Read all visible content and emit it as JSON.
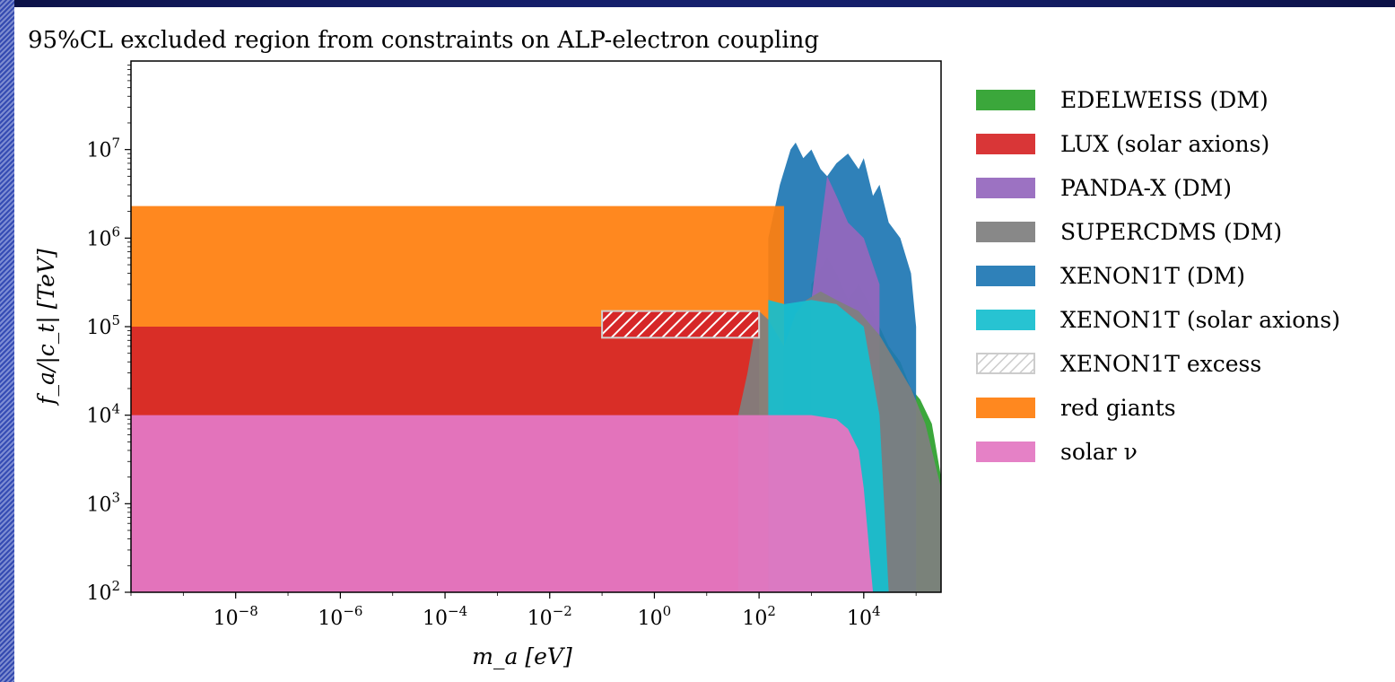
{
  "chart_data": {
    "type": "area",
    "title": "95%CL excluded region from constraints on ALP-electron coupling",
    "xlabel": "m_a [eV]",
    "ylabel": "f_a/|c_t| [TeV]",
    "xscale": "log",
    "yscale": "log",
    "xlim": [
      1e-10,
      300000.0
    ],
    "ylim": [
      100,
      100000000.0
    ],
    "grid": false,
    "legend_position": "outside-right",
    "x_ticks": [
      {
        "base": "10",
        "exp": "−8",
        "value": 1e-08
      },
      {
        "base": "10",
        "exp": "−6",
        "value": 1e-06
      },
      {
        "base": "10",
        "exp": "−4",
        "value": 0.0001
      },
      {
        "base": "10",
        "exp": "−2",
        "value": 0.01
      },
      {
        "base": "10",
        "exp": "0",
        "value": 1
      },
      {
        "base": "10",
        "exp": "2",
        "value": 100
      },
      {
        "base": "10",
        "exp": "4",
        "value": 10000
      }
    ],
    "y_ticks": [
      {
        "base": "10",
        "exp": "2",
        "value": 100
      },
      {
        "base": "10",
        "exp": "3",
        "value": 1000
      },
      {
        "base": "10",
        "exp": "4",
        "value": 10000
      },
      {
        "base": "10",
        "exp": "5",
        "value": 100000
      },
      {
        "base": "10",
        "exp": "6",
        "value": 1000000
      },
      {
        "base": "10",
        "exp": "7",
        "value": 10000000
      }
    ],
    "series": [
      {
        "name": "EDELWEISS (DM)",
        "color": "#2ca02c",
        "x": [
          1000,
          2000,
          3000,
          5000,
          8000,
          15000,
          20000,
          30000,
          50000,
          80000,
          120000,
          200000,
          300000
        ],
        "y": [
          300000,
          600000,
          400000,
          200000,
          300000,
          150000,
          100000,
          60000,
          40000,
          20000,
          15000,
          8000,
          2000
        ]
      },
      {
        "name": "LUX (solar axions)",
        "color": "#d62728",
        "x": [
          1e-10,
          100
        ],
        "y": [
          100000,
          100000
        ]
      },
      {
        "name": "PANDA-X (DM)",
        "color": "#9467bd",
        "x": [
          1000,
          2000,
          3000,
          5000,
          10000,
          20000
        ],
        "y": [
          200000,
          5000000,
          3000000,
          1500000,
          1000000,
          300000
        ]
      },
      {
        "name": "SUPERCDMS (DM)",
        "color": "#7f7f7f",
        "x": [
          40,
          60,
          80,
          100,
          150,
          200,
          300,
          500,
          800,
          1500,
          3000,
          8000,
          20000,
          40000,
          80000,
          150000,
          300000
        ],
        "y": [
          10000,
          30000,
          80000,
          150000,
          120000,
          90000,
          60000,
          140000,
          200000,
          250000,
          200000,
          150000,
          80000,
          40000,
          20000,
          8000,
          1500
        ]
      },
      {
        "name": "XENON1T (DM)",
        "color": "#1f77b4",
        "x": [
          150,
          250,
          400,
          500,
          700,
          1000,
          1500,
          2000,
          3000,
          5000,
          8000,
          10000,
          15000,
          20000,
          30000,
          50000,
          80000,
          100000
        ],
        "y": [
          1000000,
          4000000,
          10000000,
          12000000,
          8000000,
          10000000,
          6000000,
          5000000,
          7000000,
          9000000,
          6000000,
          8000000,
          3000000,
          4000000,
          1500000,
          1000000,
          400000,
          100000
        ]
      },
      {
        "name": "XENON1T (solar axions)",
        "color": "#17becf",
        "x": [
          150,
          300,
          1000,
          3000,
          10000,
          20000,
          30000
        ],
        "y": [
          200000,
          180000,
          200000,
          180000,
          100000,
          10000,
          100
        ]
      },
      {
        "name": "XENON1T excess",
        "color": "#d62728",
        "hatched": true,
        "x": [
          0.1,
          100
        ],
        "y_range": [
          75000,
          150000
        ]
      },
      {
        "name": "red giants",
        "color": "#ff7f0e",
        "x": [
          1e-10,
          300
        ],
        "y": [
          2300000,
          2300000
        ]
      },
      {
        "name": "solar ν",
        "color": "#e377c2",
        "x": [
          1e-10,
          1,
          100,
          1000,
          3000,
          5000,
          8000,
          10000,
          15000
        ],
        "y": [
          10000,
          10000,
          10000,
          10000,
          9000,
          7000,
          4000,
          1500,
          100
        ]
      }
    ]
  }
}
